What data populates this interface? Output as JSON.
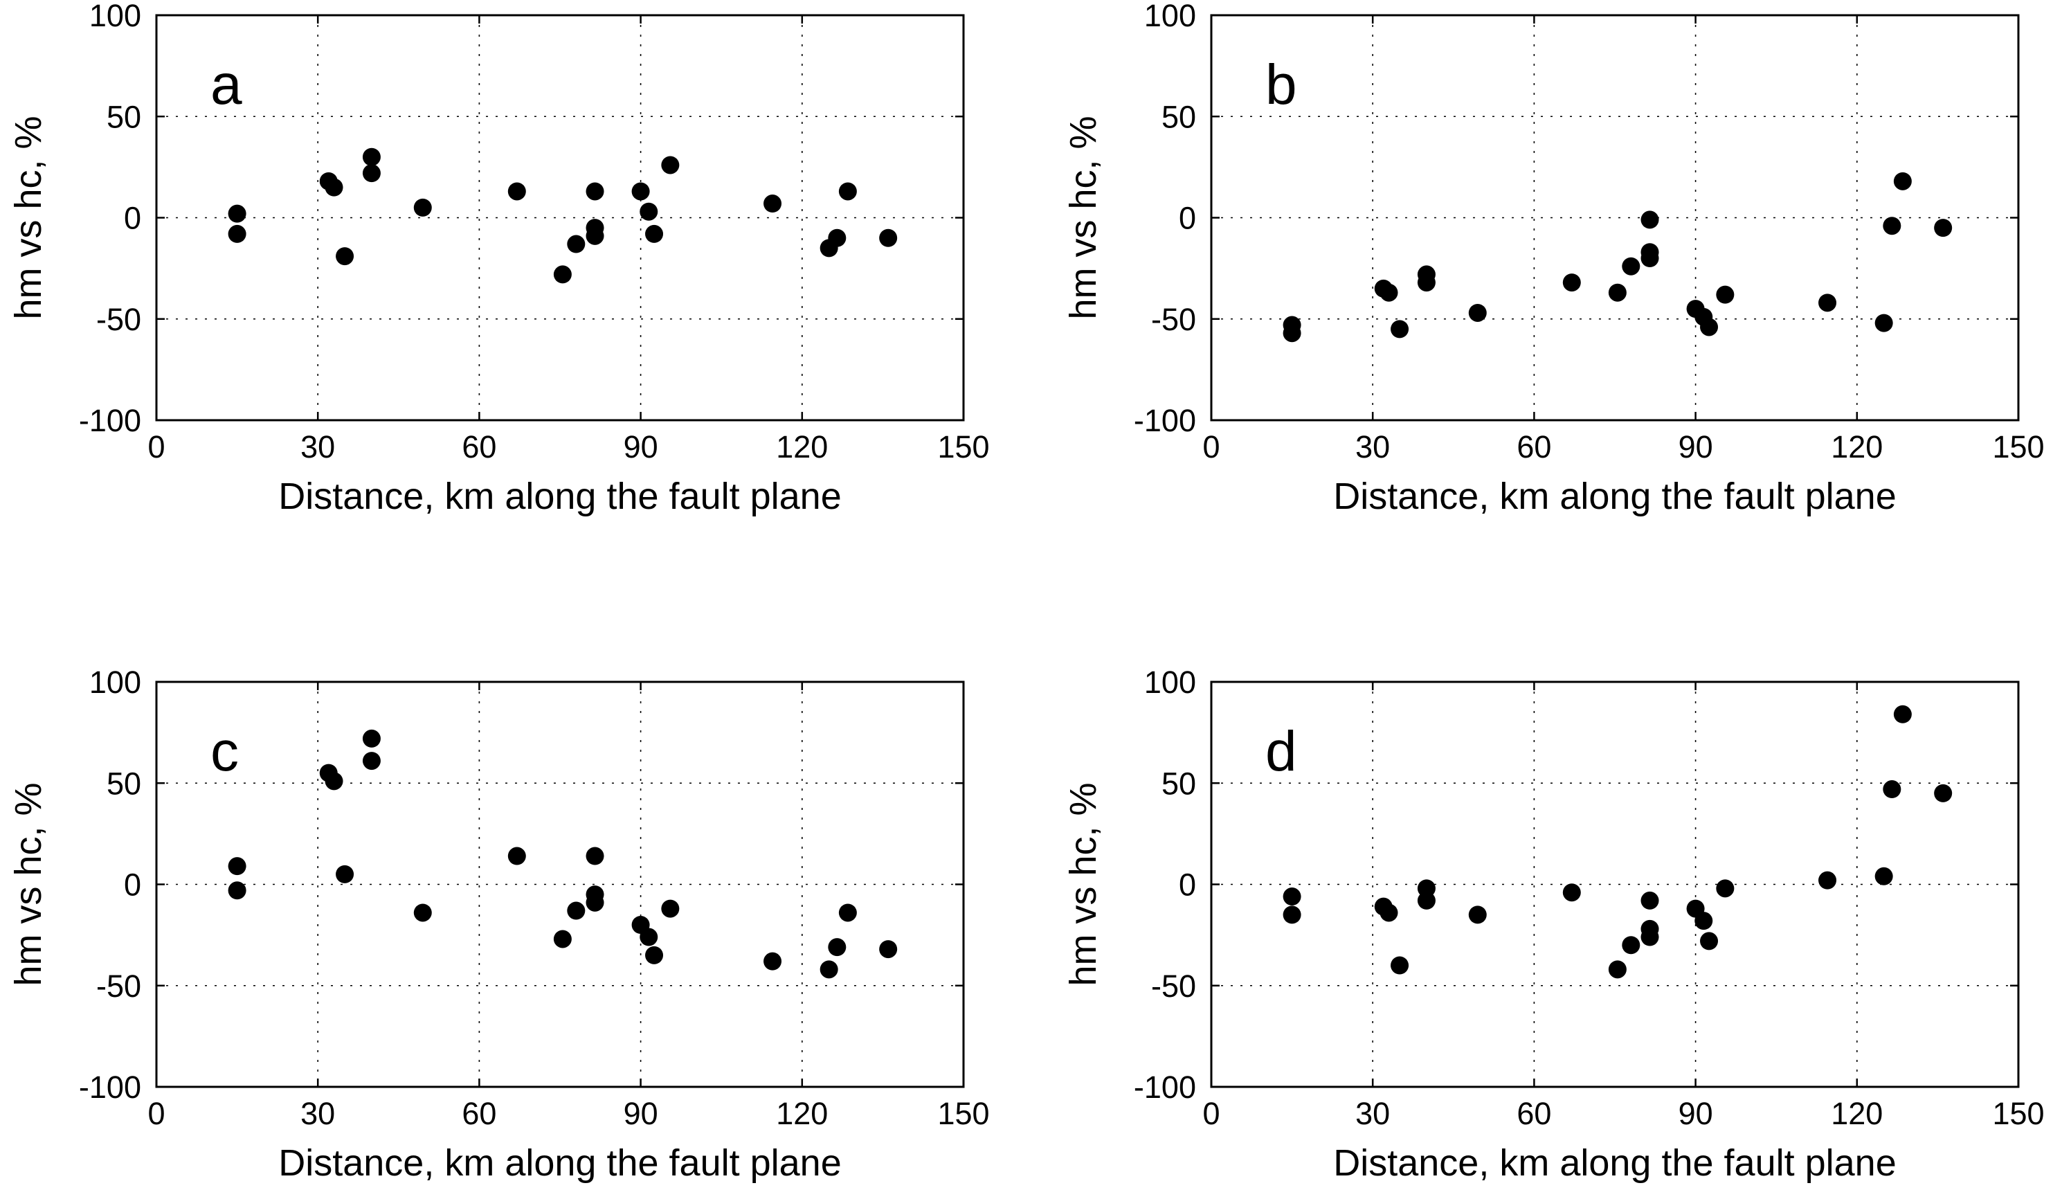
{
  "chart_data": [
    {
      "type": "scatter",
      "title": "a",
      "xlabel": "Distance, km  along the fault plane",
      "ylabel": "hm vs hc, %",
      "xlim": [
        0,
        150
      ],
      "ylim": [
        -100,
        100
      ],
      "xticks": [
        "0",
        "30",
        "60",
        "90",
        "120",
        "150"
      ],
      "yticks": [
        "100",
        "50",
        "0",
        "-50",
        "-100"
      ],
      "grid": true,
      "series": [
        {
          "name": "a",
          "x": [
            15,
            15,
            32,
            33,
            35,
            40,
            40,
            49.5,
            67,
            75.5,
            78,
            81.5,
            81.5,
            81.5,
            90,
            91.5,
            92.5,
            95.5,
            114.5,
            125,
            126.5,
            128.5,
            136
          ],
          "y": [
            2,
            -8,
            18,
            15,
            -19,
            30,
            22,
            5,
            13,
            -28,
            -13,
            -5,
            -9,
            13,
            13,
            3,
            -8,
            26,
            7,
            -15,
            -10,
            13,
            -10
          ]
        }
      ]
    },
    {
      "type": "scatter",
      "title": "b",
      "xlabel": "Distance, km  along the fault plane",
      "ylabel": "hm vs hc, %",
      "xlim": [
        0,
        150
      ],
      "ylim": [
        -100,
        100
      ],
      "xticks": [
        "0",
        "30",
        "60",
        "90",
        "120",
        "150"
      ],
      "yticks": [
        "100",
        "50",
        "0",
        "-50",
        "-100"
      ],
      "grid": true,
      "series": [
        {
          "name": "b",
          "x": [
            15,
            15,
            32,
            33,
            35,
            40,
            40,
            49.5,
            67,
            75.5,
            78,
            81.5,
            81.5,
            81.5,
            90,
            91.5,
            92.5,
            95.5,
            114.5,
            125,
            126.5,
            128.5,
            136
          ],
          "y": [
            -53,
            -57,
            -35,
            -37,
            -55,
            -28,
            -32,
            -47,
            -32,
            -37,
            -24,
            -17,
            -20,
            -1,
            -45,
            -49,
            -54,
            -38,
            -42,
            -52,
            -4,
            18,
            -5
          ]
        }
      ]
    },
    {
      "type": "scatter",
      "title": "c",
      "xlabel": "Distance, km  along the fault plane",
      "ylabel": "hm vs hc, %",
      "xlim": [
        0,
        150
      ],
      "ylim": [
        -100,
        100
      ],
      "xticks": [
        "0",
        "30",
        "60",
        "90",
        "120",
        "150"
      ],
      "yticks": [
        "100",
        "50",
        "0",
        "-50",
        "-100"
      ],
      "grid": true,
      "series": [
        {
          "name": "c",
          "x": [
            15,
            15,
            32,
            33,
            35,
            40,
            40,
            49.5,
            67,
            75.5,
            78,
            81.5,
            81.5,
            81.5,
            90,
            91.5,
            92.5,
            95.5,
            114.5,
            125,
            126.5,
            128.5,
            136
          ],
          "y": [
            9,
            -3,
            55,
            51,
            5,
            72,
            61,
            -14,
            14,
            -27,
            -13,
            -5,
            -9,
            14,
            -20,
            -26,
            -35,
            -12,
            -38,
            -42,
            -31,
            -14,
            -32
          ]
        }
      ]
    },
    {
      "type": "scatter",
      "title": "d",
      "xlabel": "Distance, km  along the fault plane",
      "ylabel": "hm vs hc, %",
      "xlim": [
        0,
        150
      ],
      "ylim": [
        -100,
        100
      ],
      "xticks": [
        "0",
        "30",
        "60",
        "90",
        "120",
        "150"
      ],
      "yticks": [
        "100",
        "50",
        "0",
        "-50",
        "-100"
      ],
      "grid": true,
      "series": [
        {
          "name": "d",
          "x": [
            15,
            15,
            32,
            33,
            35,
            40,
            40,
            49.5,
            67,
            75.5,
            78,
            81.5,
            81.5,
            81.5,
            90,
            91.5,
            92.5,
            95.5,
            114.5,
            125,
            126.5,
            128.5,
            136
          ],
          "y": [
            -6,
            -15,
            -11,
            -14,
            -40,
            -2,
            -8,
            -15,
            -4,
            -42,
            -30,
            -26,
            -22,
            -8,
            -12,
            -18,
            -28,
            -2,
            2,
            4,
            47,
            84,
            45
          ]
        }
      ]
    }
  ]
}
